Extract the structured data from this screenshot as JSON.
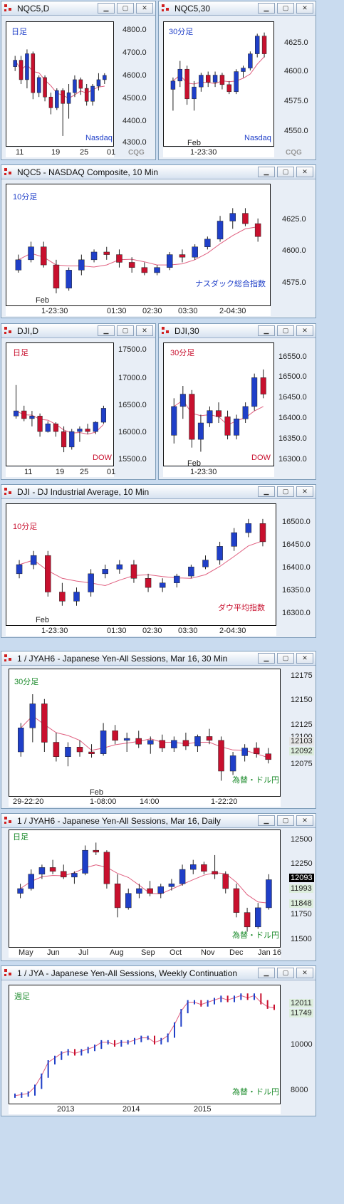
{
  "colors": {
    "up": "#1f3fc8",
    "down": "#c8102e",
    "accent_pink": "#e060c0"
  },
  "panels": [
    {
      "id": "nqc5-d",
      "title": "NQC5,D",
      "badge": "日足",
      "badge_color": "#1f3fc8",
      "watermark": "Nasdaq",
      "watermark_color": "#1f3fc8",
      "yticks": [
        "4800.0",
        "4700.0",
        "4600.0",
        "4500.0",
        "4400.0",
        "4300.0"
      ],
      "xticks": [
        "11",
        "19",
        "25",
        "01"
      ]
    },
    {
      "id": "nqc5-30",
      "title": "NQC5,30",
      "badge": "30分足",
      "badge_color": "#1f3fc8",
      "watermark": "Nasdaq",
      "watermark_color": "#1f3fc8",
      "yticks": [
        "4625.0",
        "4600.0",
        "4575.0",
        "4550.0"
      ],
      "xticks": [
        "1-23:30"
      ],
      "month": "Feb"
    },
    {
      "id": "nqc5-10",
      "title": "NQC5 - NASDAQ Composite, 10 Min",
      "badge": "10分足",
      "badge_color": "#1f3fc8",
      "watermark": "ナスダック総合指数",
      "watermark_color": "#1f3fc8",
      "yticks": [
        "4625.0",
        "4600.0",
        "4575.0"
      ],
      "xticks": [
        "1-23:30",
        "01:30",
        "02:30",
        "03:30",
        "2-04:30"
      ],
      "month": "Feb"
    },
    {
      "id": "dji-d",
      "title": "DJI,D",
      "badge": "日足",
      "badge_color": "#c8102e",
      "watermark": "DOW",
      "watermark_color": "#c8102e",
      "yticks": [
        "17500.0",
        "17000.0",
        "16500.0",
        "16000.0",
        "15500.0"
      ],
      "xticks": [
        "11",
        "19",
        "25",
        "01"
      ]
    },
    {
      "id": "dji-30",
      "title": "DJI,30",
      "badge": "30分足",
      "badge_color": "#c8102e",
      "watermark": "DOW",
      "watermark_color": "#c8102e",
      "yticks": [
        "16550.0",
        "16500.0",
        "16450.0",
        "16400.0",
        "16350.0",
        "16300.0"
      ],
      "xticks": [
        "1-23:30"
      ],
      "month": "Feb"
    },
    {
      "id": "dji-10",
      "title": "DJI - DJ Industrial Average, 10 Min",
      "badge": "10分足",
      "badge_color": "#c8102e",
      "watermark": "ダウ平均指数",
      "watermark_color": "#c8102e",
      "yticks": [
        "16500.0",
        "16450.0",
        "16400.0",
        "16350.0",
        "16300.0"
      ],
      "xticks": [
        "1-23:30",
        "01:30",
        "02:30",
        "03:30",
        "2-04:30"
      ],
      "month": "Feb"
    },
    {
      "id": "jyah6-30",
      "title": "1 / JYAH6 - Japanese Yen-All Sessions, Mar 16, 30 Min",
      "badge": "30分足",
      "badge_color": "#1a8a2a",
      "watermark": "為替・ドル円",
      "watermark_color": "#1a8a2a",
      "yticks": [
        "12175",
        "12150",
        "12125",
        "12100",
        "12075"
      ],
      "xticks": [
        "29-22:20",
        "1-08:00",
        "14:00",
        "1-22:20"
      ],
      "month": "Feb",
      "price_labels": [
        {
          "text": "12103",
          "bg": "#e6e6e6"
        },
        {
          "text": "12092",
          "bg": "#ddeedd"
        }
      ]
    },
    {
      "id": "jyah6-d",
      "title": "1 / JYAH6 - Japanese Yen-All Sessions, Mar 16, Daily",
      "badge": "日足",
      "badge_color": "#1a8a2a",
      "watermark": "為替・ドル円",
      "watermark_color": "#1a8a2a",
      "yticks": [
        "12500",
        "12250",
        "12000",
        "11750",
        "11500"
      ],
      "xticks": [
        "May",
        "Jun",
        "Jul",
        "Aug",
        "Sep",
        "Oct",
        "Nov",
        "Dec",
        "Jan 16"
      ],
      "price_labels": [
        {
          "text": "12093",
          "bg": "#000000"
        },
        {
          "text": "11993",
          "bg": "#ddeedd"
        },
        {
          "text": "11848",
          "bg": "#ddeedd"
        }
      ]
    },
    {
      "id": "jya-w",
      "title": "1 / JYA - Japanese Yen-All Sessions, Weekly Continuation",
      "badge": "週足",
      "badge_color": "#1a8a2a",
      "watermark": "為替・ドル円",
      "watermark_color": "#1a8a2a",
      "yticks": [
        "10000",
        "8000"
      ],
      "xticks": [
        "2013",
        "2014",
        "2015"
      ],
      "price_labels": [
        {
          "text": "12011",
          "bg": "#ddeedd"
        },
        {
          "text": "11749",
          "bg": "#ddeedd"
        }
      ]
    }
  ],
  "chart_data": [
    {
      "type": "candlestick",
      "id": "nqc5-d",
      "ylim": [
        4300,
        4820
      ],
      "ohlc": [
        [
          4640,
          4690,
          4620,
          4670
        ],
        [
          4670,
          4690,
          4560,
          4580
        ],
        [
          4580,
          4720,
          4540,
          4700
        ],
        [
          4700,
          4710,
          4490,
          4520
        ],
        [
          4520,
          4600,
          4500,
          4590
        ],
        [
          4590,
          4600,
          4480,
          4500
        ],
        [
          4500,
          4520,
          4420,
          4450
        ],
        [
          4450,
          4540,
          4440,
          4530
        ],
        [
          4530,
          4540,
          4320,
          4470
        ],
        [
          4470,
          4560,
          4400,
          4520
        ],
        [
          4520,
          4600,
          4500,
          4580
        ],
        [
          4580,
          4590,
          4510,
          4540
        ],
        [
          4540,
          4560,
          4460,
          4480
        ],
        [
          4480,
          4560,
          4460,
          4550
        ],
        [
          4550,
          4610,
          4530,
          4580
        ],
        [
          4580,
          4610,
          4560,
          4600
        ]
      ]
    },
    {
      "type": "candlestick",
      "id": "nqc5-30",
      "ylim": [
        4545,
        4640
      ],
      "ohlc": [
        [
          4588,
          4598,
          4570,
          4595
        ],
        [
          4595,
          4612,
          4590,
          4605
        ],
        [
          4605,
          4608,
          4575,
          4580
        ],
        [
          4580,
          4595,
          4570,
          4590
        ],
        [
          4590,
          4602,
          4586,
          4600
        ],
        [
          4600,
          4603,
          4590,
          4594
        ],
        [
          4594,
          4603,
          4590,
          4600
        ],
        [
          4600,
          4602,
          4588,
          4592
        ],
        [
          4592,
          4595,
          4584,
          4586
        ],
        [
          4586,
          4605,
          4584,
          4603
        ],
        [
          4603,
          4608,
          4598,
          4606
        ],
        [
          4606,
          4620,
          4604,
          4618
        ],
        [
          4618,
          4635,
          4615,
          4633
        ],
        [
          4633,
          4636,
          4615,
          4618
        ]
      ]
    },
    {
      "type": "candlestick",
      "id": "nqc5-10",
      "ylim": [
        4565,
        4650
      ],
      "ohlc": [
        [
          4588,
          4600,
          4586,
          4596
        ],
        [
          4596,
          4610,
          4594,
          4606
        ],
        [
          4606,
          4610,
          4590,
          4592
        ],
        [
          4592,
          4596,
          4570,
          4574
        ],
        [
          4574,
          4590,
          4572,
          4588
        ],
        [
          4588,
          4600,
          4584,
          4596
        ],
        [
          4596,
          4604,
          4594,
          4602
        ],
        [
          4602,
          4606,
          4596,
          4600
        ],
        [
          4600,
          4604,
          4590,
          4594
        ],
        [
          4594,
          4598,
          4586,
          4590
        ],
        [
          4590,
          4594,
          4584,
          4586
        ],
        [
          4586,
          4592,
          4584,
          4590
        ],
        [
          4590,
          4602,
          4588,
          4600
        ],
        [
          4600,
          4604,
          4594,
          4598
        ],
        [
          4598,
          4608,
          4596,
          4606
        ],
        [
          4606,
          4614,
          4604,
          4612
        ],
        [
          4612,
          4630,
          4610,
          4626
        ],
        [
          4626,
          4636,
          4620,
          4632
        ],
        [
          4632,
          4636,
          4622,
          4624
        ],
        [
          4624,
          4628,
          4610,
          4614
        ]
      ]
    },
    {
      "type": "candlestick",
      "id": "dji-d",
      "ylim": [
        15450,
        17600
      ],
      "ohlc": [
        [
          16300,
          16900,
          16250,
          16400
        ],
        [
          16400,
          16500,
          16200,
          16250
        ],
        [
          16250,
          16400,
          16100,
          16300
        ],
        [
          16300,
          16350,
          15900,
          16000
        ],
        [
          16000,
          16200,
          15980,
          16150
        ],
        [
          16150,
          16180,
          15900,
          16000
        ],
        [
          16000,
          16100,
          15600,
          15700
        ],
        [
          15700,
          16050,
          15650,
          16000
        ],
        [
          16000,
          16100,
          15800,
          16050
        ],
        [
          16050,
          16150,
          15950,
          16000
        ],
        [
          16000,
          16200,
          15950,
          16180
        ],
        [
          16180,
          16500,
          16150,
          16450
        ]
      ]
    },
    {
      "type": "candlestick",
      "id": "dji-30",
      "ylim": [
        16290,
        16560
      ],
      "ohlc": [
        [
          16350,
          16440,
          16330,
          16420
        ],
        [
          16420,
          16470,
          16390,
          16450
        ],
        [
          16450,
          16460,
          16320,
          16340
        ],
        [
          16340,
          16400,
          16310,
          16380
        ],
        [
          16380,
          16420,
          16370,
          16410
        ],
        [
          16410,
          16430,
          16380,
          16395
        ],
        [
          16395,
          16410,
          16340,
          16350
        ],
        [
          16350,
          16400,
          16340,
          16390
        ],
        [
          16390,
          16430,
          16380,
          16420
        ],
        [
          16420,
          16500,
          16410,
          16490
        ],
        [
          16490,
          16510,
          16440,
          16450
        ]
      ]
    },
    {
      "type": "candlestick",
      "id": "dji-10",
      "ylim": [
        16290,
        16530
      ],
      "ohlc": [
        [
          16390,
          16420,
          16380,
          16410
        ],
        [
          16410,
          16440,
          16400,
          16430
        ],
        [
          16430,
          16440,
          16340,
          16350
        ],
        [
          16350,
          16370,
          16320,
          16330
        ],
        [
          16330,
          16360,
          16320,
          16350
        ],
        [
          16350,
          16400,
          16340,
          16390
        ],
        [
          16390,
          16410,
          16380,
          16400
        ],
        [
          16400,
          16420,
          16390,
          16410
        ],
        [
          16410,
          16420,
          16370,
          16380
        ],
        [
          16380,
          16390,
          16350,
          16360
        ],
        [
          16360,
          16380,
          16350,
          16370
        ],
        [
          16370,
          16390,
          16360,
          16385
        ],
        [
          16385,
          16410,
          16380,
          16405
        ],
        [
          16405,
          16430,
          16400,
          16420
        ],
        [
          16420,
          16460,
          16410,
          16450
        ],
        [
          16450,
          16490,
          16440,
          16480
        ],
        [
          16480,
          16510,
          16470,
          16500
        ],
        [
          16500,
          16510,
          16450,
          16460
        ]
      ]
    },
    {
      "type": "candlestick",
      "id": "jyah6-30",
      "ylim": [
        12060,
        12180
      ],
      "ohlc": [
        [
          12100,
          12130,
          12095,
          12125
        ],
        [
          12125,
          12160,
          12110,
          12150
        ],
        [
          12150,
          12155,
          12100,
          12110
        ],
        [
          12110,
          12120,
          12090,
          12095
        ],
        [
          12095,
          12110,
          12085,
          12105
        ],
        [
          12105,
          12112,
          12095,
          12100
        ],
        [
          12100,
          12108,
          12094,
          12098
        ],
        [
          12098,
          12130,
          12096,
          12122
        ],
        [
          12122,
          12128,
          12108,
          12112
        ],
        [
          12112,
          12120,
          12100,
          12114
        ],
        [
          12114,
          12122,
          12104,
          12108
        ],
        [
          12108,
          12116,
          12098,
          12112
        ],
        [
          12112,
          12118,
          12100,
          12104
        ],
        [
          12104,
          12116,
          12100,
          12112
        ],
        [
          12112,
          12120,
          12102,
          12106
        ],
        [
          12106,
          12118,
          12100,
          12116
        ],
        [
          12116,
          12124,
          12108,
          12112
        ],
        [
          12112,
          12116,
          12070,
          12080
        ],
        [
          12080,
          12100,
          12076,
          12096
        ],
        [
          12096,
          12108,
          12090,
          12104
        ],
        [
          12104,
          12110,
          12094,
          12098
        ],
        [
          12098,
          12104,
          12088,
          12092
        ]
      ]
    },
    {
      "type": "candlestick",
      "id": "jyah6-d",
      "ylim": [
        11450,
        12550
      ],
      "ohlc": [
        [
          11950,
          12050,
          11900,
          12000
        ],
        [
          12000,
          12200,
          11980,
          12150
        ],
        [
          12150,
          12250,
          12100,
          12220
        ],
        [
          12220,
          12300,
          12150,
          12180
        ],
        [
          12180,
          12250,
          12100,
          12120
        ],
        [
          12120,
          12180,
          12050,
          12160
        ],
        [
          12160,
          12450,
          12140,
          12400
        ],
        [
          12400,
          12480,
          12350,
          12380
        ],
        [
          12380,
          12400,
          12000,
          12050
        ],
        [
          12050,
          12150,
          11700,
          11800
        ],
        [
          11800,
          12000,
          11780,
          11950
        ],
        [
          11950,
          12050,
          11900,
          12000
        ],
        [
          12000,
          12080,
          11920,
          11950
        ],
        [
          11950,
          12050,
          11900,
          12020
        ],
        [
          12020,
          12100,
          11980,
          12050
        ],
        [
          12050,
          12250,
          12030,
          12200
        ],
        [
          12200,
          12300,
          12150,
          12250
        ],
        [
          12250,
          12280,
          12150,
          12180
        ],
        [
          12180,
          12350,
          12100,
          12150
        ],
        [
          12150,
          12180,
          11950,
          12000
        ],
        [
          12000,
          12050,
          11700,
          11750
        ],
        [
          11750,
          11800,
          11550,
          11600
        ],
        [
          11600,
          11850,
          11580,
          11800
        ],
        [
          11800,
          12150,
          11780,
          12093
        ]
      ]
    },
    {
      "type": "line",
      "id": "jya-w",
      "ylim": [
        7700,
        12500
      ],
      "series": [
        {
          "values": [
            7800,
            7850,
            7900,
            8200,
            8700,
            9300,
            9500,
            9700,
            9800,
            9700,
            9800,
            9900,
            10000,
            10200,
            10200,
            10100,
            10200,
            10200,
            10300,
            10400,
            10400,
            10200,
            10300,
            10500,
            11000,
            11600,
            12000,
            12000,
            11900,
            12000,
            12100,
            12200,
            12100,
            12200,
            12300,
            12200,
            12300,
            12000,
            11800,
            11749
          ]
        }
      ]
    }
  ]
}
